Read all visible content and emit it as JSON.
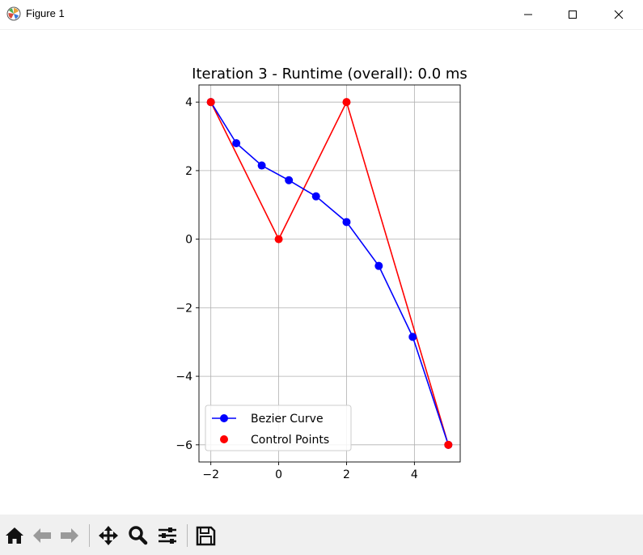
{
  "window": {
    "title": "Figure 1",
    "icons": [
      "matplotlib-logo-icon",
      "minimize-icon",
      "maximize-icon",
      "close-icon"
    ]
  },
  "toolbar": {
    "icons": [
      "home-icon",
      "back-arrow-icon",
      "forward-arrow-icon",
      "pan-move-icon",
      "zoom-magnifier-icon",
      "configure-subplots-icon",
      "save-floppy-icon"
    ]
  },
  "chart_data": {
    "type": "line",
    "title": "Iteration 3 - Runtime (overall): 0.0 ms",
    "xlabel": "",
    "ylabel": "",
    "xlim": [
      -2.35,
      5.35
    ],
    "ylim": [
      -6.5,
      4.5
    ],
    "xticks": [
      -2,
      0,
      2,
      4
    ],
    "yticks": [
      -6,
      -4,
      -2,
      0,
      2,
      4
    ],
    "xtick_labels": [
      "−2",
      "0",
      "2",
      "4"
    ],
    "ytick_labels": [
      "−6",
      "−4",
      "−2",
      "0",
      "2",
      "4"
    ],
    "grid": true,
    "legend_position": "lower-left",
    "series": [
      {
        "name": "Bezier Curve",
        "color": "#0000ff",
        "marker": "o",
        "line": true,
        "x": [
          -2.0,
          -1.25,
          -0.5,
          0.3,
          1.1,
          2.0,
          2.95,
          3.95,
          5.0
        ],
        "y": [
          4.0,
          2.8,
          2.15,
          1.72,
          1.25,
          0.5,
          -0.78,
          -2.85,
          -6.0
        ]
      },
      {
        "name": "Control Points",
        "color": "#ff0000",
        "marker": "o",
        "line": false,
        "x": [
          -2.0,
          0.0,
          2.0,
          5.0
        ],
        "y": [
          4.0,
          0.0,
          4.0,
          -6.0
        ]
      }
    ],
    "control_polygon": {
      "color": "#ff0000",
      "x": [
        -2.0,
        0.0,
        2.0,
        5.0
      ],
      "y": [
        4.0,
        0.0,
        4.0,
        -6.0
      ]
    }
  }
}
